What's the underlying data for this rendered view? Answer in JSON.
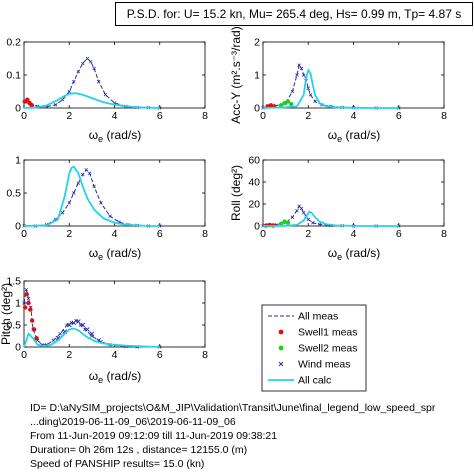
{
  "header": {
    "text": "P.S.D. for: U= 15.2 kn, Mu= 265.4 deg, Hs= 0.99 m, Tp= 4.87 s"
  },
  "colors": {
    "all_meas": "#1f2f8f",
    "swell1": "#dd1111",
    "swell2": "#22cc22",
    "wind": "#2222aa",
    "all_calc": "#22d4e6"
  },
  "legend": {
    "entries": [
      {
        "label": "All meas",
        "marker": "dashed-line",
        "color": "#1f2f8f"
      },
      {
        "label": "Swell1 meas",
        "marker": "dot",
        "color": "#dd1111"
      },
      {
        "label": "Swell2 meas",
        "marker": "dot",
        "color": "#22cc22"
      },
      {
        "label": "Wind meas",
        "marker": "x",
        "color": "#2222aa"
      },
      {
        "label": "All calc",
        "marker": "solid-line",
        "color": "#22d4e6"
      }
    ]
  },
  "info": {
    "line1": "ID= D:\\aNySIM_projects\\O&M_JIP\\Validation\\Transit\\June\\final_legend_low_speed_spr",
    "line2": "...ding\\2019-06-11-09_06\\2019-06-11-09_06",
    "line3": "From 11-Jun-2019 09:12:09 till 11-Jun-2019 09:38:21",
    "line4": "Duration= 0h 26m 12s  , distance=      12155.0 (m)",
    "line5": "Speed of PANSHIP results=       15.0 (kn)"
  },
  "chart_data": [
    {
      "id": "top-left",
      "type": "line",
      "title": "",
      "xlabel": "ω_e (rad/s)",
      "ylabel": "",
      "xlim": [
        0,
        8
      ],
      "ylim": [
        0,
        0.2
      ],
      "xticks": [
        "0",
        "2",
        "4",
        "6",
        "8"
      ],
      "yticks": [
        "0",
        "0.1",
        "0.2"
      ],
      "series": [
        {
          "name": "All meas",
          "style": "dashed",
          "x": [
            0,
            0.3,
            0.6,
            1.0,
            1.4,
            1.7,
            2.0,
            2.2,
            2.4,
            2.6,
            2.8,
            2.95,
            3.1,
            3.3,
            3.6,
            4.0,
            4.5,
            5.0,
            5.5,
            6.0
          ],
          "y": [
            0.02,
            0.01,
            0.005,
            0.004,
            0.01,
            0.025,
            0.05,
            0.08,
            0.11,
            0.135,
            0.15,
            0.14,
            0.12,
            0.08,
            0.04,
            0.015,
            0.005,
            0.002,
            0.001,
            0
          ]
        },
        {
          "name": "Swell1 meas",
          "style": "dot",
          "x": [
            0.05,
            0.15,
            0.25,
            0.35
          ],
          "y": [
            0.02,
            0.025,
            0.015,
            0.008
          ]
        },
        {
          "name": "All calc",
          "style": "solid",
          "x": [
            0,
            0.5,
            1.0,
            1.5,
            1.8,
            2.0,
            2.3,
            2.6,
            3.0,
            3.5,
            4.0,
            4.5,
            5.0,
            5.5,
            6.0
          ],
          "y": [
            0,
            0.001,
            0.008,
            0.025,
            0.037,
            0.043,
            0.045,
            0.04,
            0.03,
            0.018,
            0.01,
            0.005,
            0.002,
            0.001,
            0
          ]
        }
      ]
    },
    {
      "id": "top-right",
      "type": "line",
      "title": "",
      "xlabel": "ω_e (rad/s)",
      "ylabel": "Acc-Y (m².s⁻³/rad)",
      "xlim": [
        0,
        8
      ],
      "ylim": [
        0,
        2
      ],
      "xticks": [
        "0",
        "2",
        "4",
        "6",
        "8"
      ],
      "yticks": [
        "0",
        "1",
        "2"
      ],
      "series": [
        {
          "name": "All meas",
          "style": "dashed",
          "x": [
            0,
            0.5,
            1.0,
            1.3,
            1.5,
            1.6,
            1.7,
            1.8,
            1.9,
            2.0,
            2.1,
            2.3,
            2.6,
            3.0,
            3.5,
            4.0,
            5.0,
            6.0
          ],
          "y": [
            0,
            0.05,
            0.15,
            0.5,
            1.0,
            1.3,
            1.2,
            1.0,
            0.9,
            0.6,
            0.4,
            0.2,
            0.1,
            0.05,
            0.02,
            0.01,
            0,
            0
          ]
        },
        {
          "name": "Swell1 meas",
          "style": "dot",
          "x": [
            0.2,
            0.35,
            0.5
          ],
          "y": [
            0.05,
            0.08,
            0.05
          ]
        },
        {
          "name": "Swell2 meas",
          "style": "dot",
          "x": [
            0.8,
            0.95,
            1.1,
            1.25
          ],
          "y": [
            0.08,
            0.15,
            0.2,
            0.12
          ]
        },
        {
          "name": "All calc",
          "style": "solid",
          "x": [
            0,
            1.0,
            1.5,
            1.8,
            1.9,
            2.0,
            2.1,
            2.2,
            2.3,
            2.5,
            2.8,
            3.2,
            4.0,
            5.0,
            6.0
          ],
          "y": [
            0,
            0.02,
            0.05,
            0.4,
            0.9,
            1.15,
            1.05,
            0.7,
            0.4,
            0.15,
            0.05,
            0.02,
            0.005,
            0,
            0
          ]
        }
      ]
    },
    {
      "id": "middle-left",
      "type": "line",
      "title": "",
      "xlabel": "ω_e (rad/s)",
      "ylabel": "",
      "xlim": [
        0,
        8
      ],
      "ylim": [
        0,
        1
      ],
      "xticks": [
        "0",
        "2",
        "4",
        "6",
        "8"
      ],
      "yticks": [
        "0",
        "0.5",
        "1"
      ],
      "series": [
        {
          "name": "All meas",
          "style": "dashed",
          "x": [
            0,
            0.5,
            1.0,
            1.4,
            1.7,
            2.0,
            2.2,
            2.4,
            2.6,
            2.75,
            2.9,
            3.1,
            3.4,
            3.8,
            4.2,
            4.6,
            5.0,
            5.5,
            6.0
          ],
          "y": [
            0,
            0,
            0.02,
            0.1,
            0.2,
            0.35,
            0.5,
            0.65,
            0.78,
            0.85,
            0.8,
            0.6,
            0.35,
            0.15,
            0.06,
            0.02,
            0.01,
            0,
            0
          ]
        },
        {
          "name": "All calc",
          "style": "solid",
          "x": [
            0,
            1.0,
            1.5,
            1.8,
            2.0,
            2.1,
            2.2,
            2.4,
            2.6,
            2.8,
            3.1,
            3.5,
            4.0,
            4.5,
            5.0,
            5.5,
            6.0
          ],
          "y": [
            0,
            0.01,
            0.1,
            0.45,
            0.8,
            0.88,
            0.9,
            0.8,
            0.6,
            0.42,
            0.25,
            0.12,
            0.05,
            0.02,
            0.01,
            0,
            0
          ]
        }
      ]
    },
    {
      "id": "middle-right",
      "type": "line",
      "title": "",
      "xlabel": "ω_e (rad/s)",
      "ylabel": "Roll (deg²)",
      "xlim": [
        0,
        8
      ],
      "ylim": [
        0,
        60
      ],
      "xticks": [
        "0",
        "2",
        "4",
        "6",
        "8"
      ],
      "yticks": [
        "0",
        "20",
        "40",
        "60"
      ],
      "series": [
        {
          "name": "All meas",
          "style": "dashed",
          "x": [
            0,
            0.5,
            1.0,
            1.3,
            1.5,
            1.6,
            1.7,
            1.8,
            1.9,
            2.0,
            2.2,
            2.5,
            3.0,
            3.5,
            4.0,
            5.0,
            6.0
          ],
          "y": [
            0,
            1,
            3,
            8,
            14,
            18,
            16,
            12,
            9,
            6,
            3,
            1.5,
            0.5,
            0.2,
            0,
            0,
            0
          ]
        },
        {
          "name": "Swell1 meas",
          "style": "dot",
          "x": [
            0.15,
            0.3,
            0.45
          ],
          "y": [
            0.5,
            1,
            0.5
          ]
        },
        {
          "name": "Swell2 meas",
          "style": "dot",
          "x": [
            0.8,
            0.95,
            1.1
          ],
          "y": [
            2,
            4,
            3
          ]
        },
        {
          "name": "All calc",
          "style": "solid",
          "x": [
            0,
            1.0,
            1.5,
            1.8,
            1.95,
            2.05,
            2.15,
            2.3,
            2.5,
            2.8,
            3.2,
            4.0,
            5.0,
            6.0
          ],
          "y": [
            0,
            0.2,
            1,
            5,
            10,
            13,
            12,
            8,
            4,
            1.5,
            0.5,
            0.1,
            0,
            0
          ]
        }
      ]
    },
    {
      "id": "bottom-left",
      "type": "line",
      "title": "",
      "xlabel": "ω_e (rad/s)",
      "ylabel": "Pitch (deg²)",
      "xlim": [
        0,
        8
      ],
      "ylim": [
        0,
        1.5
      ],
      "xticks": [
        "0",
        "2",
        "4",
        "6",
        "8"
      ],
      "yticks": [
        "0",
        "0.5",
        "1",
        "1.5"
      ],
      "series": [
        {
          "name": "All meas",
          "style": "dashed",
          "x": [
            0,
            0.1,
            0.2,
            0.3,
            0.4,
            0.6,
            0.8,
            1.0,
            1.3,
            1.6,
            1.9,
            2.1,
            2.3,
            2.5,
            2.7,
            3.0,
            3.4,
            3.8,
            4.5,
            5.0,
            6.0
          ],
          "y": [
            1.0,
            1.3,
            1.1,
            0.9,
            0.4,
            0.15,
            0.05,
            0.05,
            0.15,
            0.3,
            0.5,
            0.55,
            0.6,
            0.5,
            0.4,
            0.25,
            0.12,
            0.05,
            0.01,
            0,
            0
          ]
        },
        {
          "name": "Swell1 meas",
          "style": "dot",
          "x": [
            0.05,
            0.12,
            0.2,
            0.28,
            0.36,
            0.45,
            0.55
          ],
          "y": [
            0.9,
            1.2,
            1.0,
            0.85,
            0.6,
            0.4,
            0.2
          ]
        },
        {
          "name": "Wind meas",
          "style": "x",
          "x": [
            1.5,
            1.8,
            2.0,
            2.2,
            2.4,
            2.6,
            2.8,
            3.0,
            3.3
          ],
          "y": [
            0.2,
            0.35,
            0.5,
            0.55,
            0.58,
            0.5,
            0.4,
            0.3,
            0.15
          ]
        },
        {
          "name": "All calc",
          "style": "solid",
          "x": [
            0,
            0.2,
            0.4,
            0.6,
            0.9,
            1.2,
            1.5,
            1.8,
            2.0,
            2.2,
            2.4,
            2.6,
            2.8,
            3.1,
            3.5,
            4.0,
            4.5,
            5.0,
            5.5,
            6.0
          ],
          "y": [
            0,
            0.3,
            0.2,
            0.05,
            0.02,
            0.05,
            0.15,
            0.3,
            0.4,
            0.42,
            0.38,
            0.3,
            0.22,
            0.14,
            0.08,
            0.05,
            0.03,
            0.02,
            0.01,
            0
          ]
        }
      ]
    }
  ]
}
